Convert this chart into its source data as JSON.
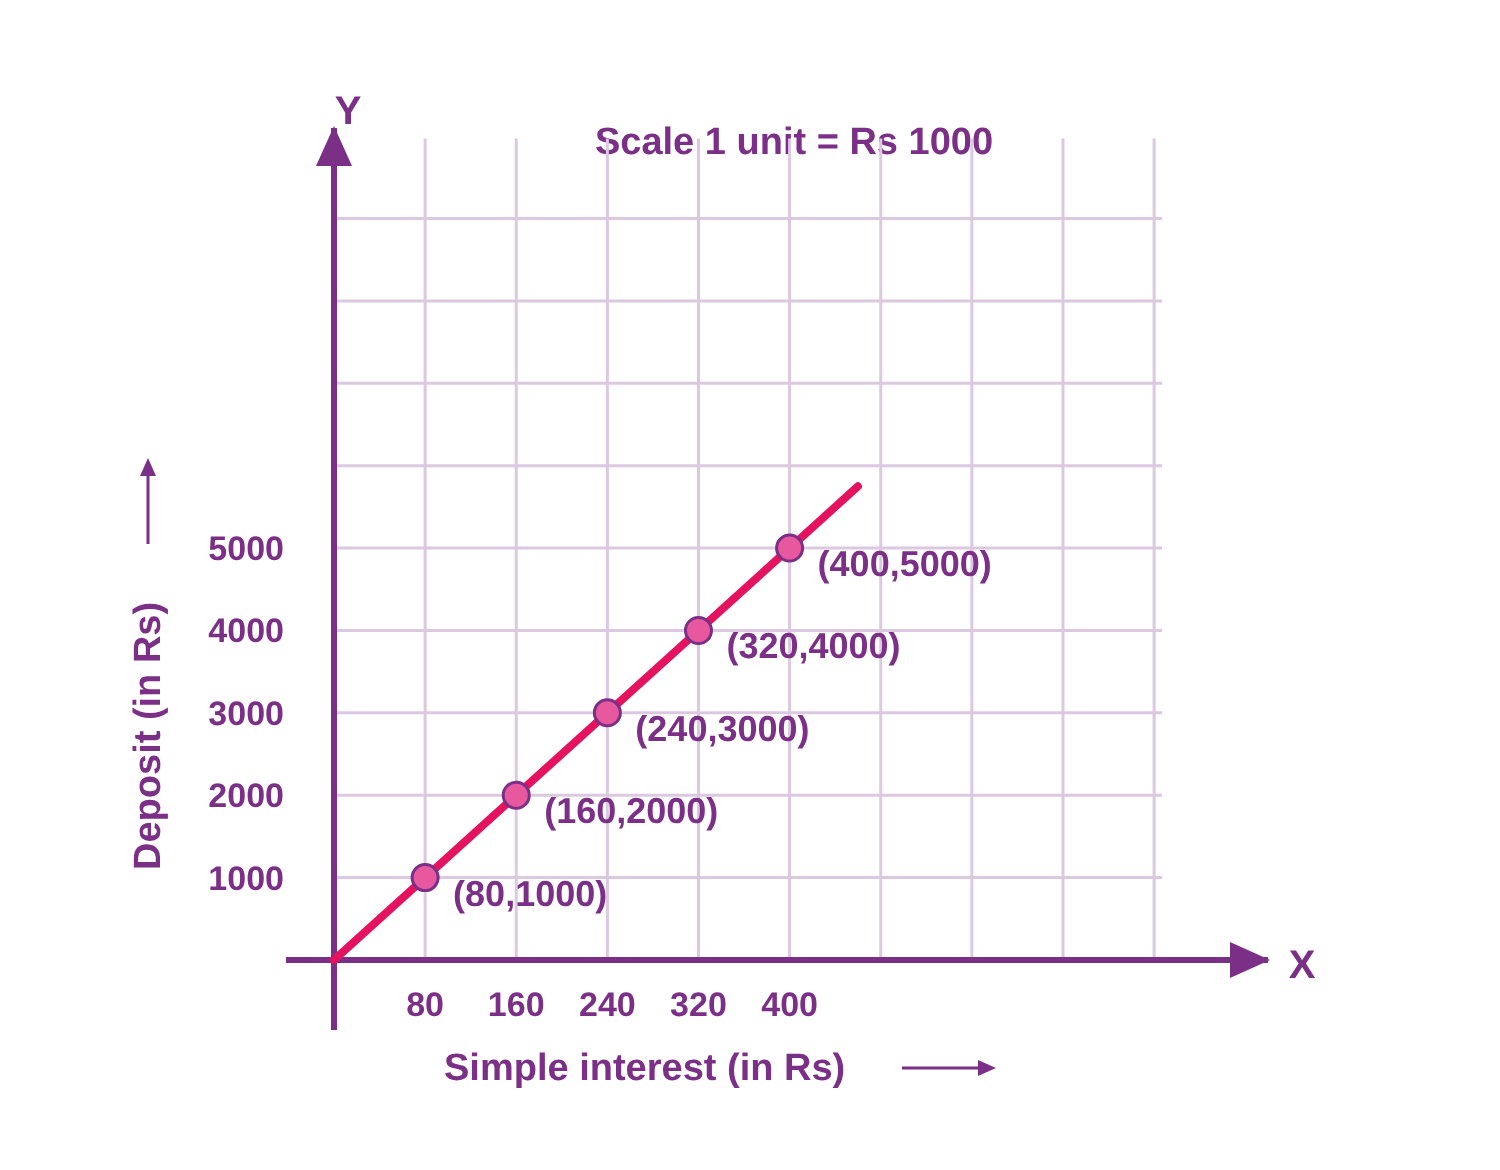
{
  "chart_data": {
    "type": "line",
    "title": "Scale 1 unit = Rs 1000",
    "xlabel": "Simple interest (in Rs)",
    "ylabel": "Deposit (in Rs)",
    "annotations": [
      "X",
      "Y"
    ],
    "xlim": [
      0,
      820
    ],
    "ylim": [
      0,
      10100
    ],
    "xticks": [
      80,
      160,
      240,
      320,
      400,
      {
        "value": 480,
        "label": null
      },
      {
        "value": 560,
        "label": null
      },
      {
        "value": 640,
        "label": null
      },
      {
        "value": 720,
        "label": null
      }
    ],
    "yticks": [
      1000,
      2000,
      3000,
      4000,
      5000,
      {
        "value": 6000,
        "label": null
      },
      {
        "value": 7000,
        "label": null
      },
      {
        "value": 8000,
        "label": null
      },
      {
        "value": 9000,
        "label": null
      }
    ],
    "grid": true,
    "series": [
      {
        "color": "#e5135f",
        "marker": "none",
        "x": [
          0,
          460
        ],
        "values": [
          0,
          5750
        ]
      },
      {
        "type": "scatter",
        "color": "#e8589f",
        "marker": "circle",
        "x": [
          80,
          160,
          240,
          320,
          400
        ],
        "values": [
          1000,
          2000,
          3000,
          4000,
          5000
        ],
        "value_labels": [
          "(80,1000)",
          "(160,2000)",
          "(240,3000)",
          "(320,4000)",
          "(400,5000)"
        ]
      }
    ]
  }
}
